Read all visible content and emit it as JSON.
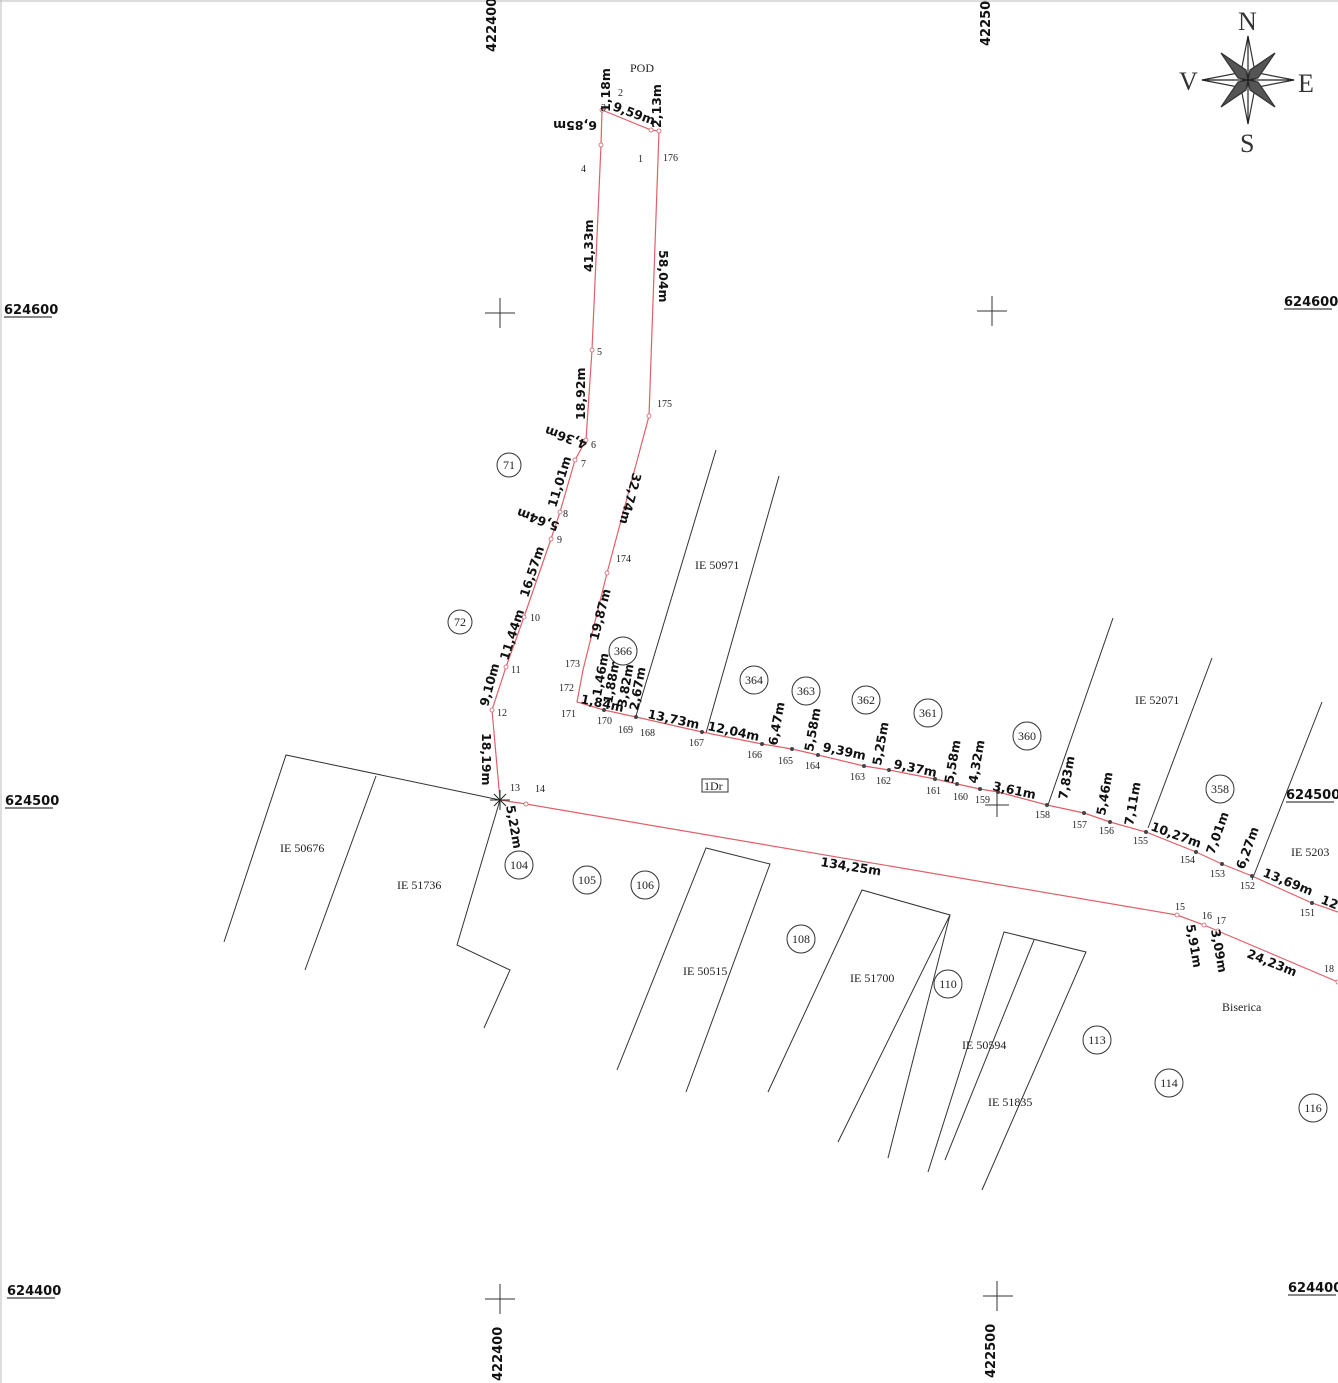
{
  "grid": {
    "y_labels": [
      "624600",
      "624500",
      "624400"
    ],
    "x_labels": [
      "422400",
      "422500"
    ]
  },
  "compass": {
    "n": "N",
    "s": "S",
    "e": "E",
    "v": "V"
  },
  "boundary_dimensions": [
    "1,18m",
    "9,59m",
    "2,13m",
    "6,85m",
    "41,33m",
    "58,04m",
    "18,92m",
    "4,36m",
    "11,01m",
    "5,64m",
    "32,74m",
    "16,57m",
    "19,87m",
    "11,44m",
    "9,10m",
    "18,19m",
    "5,22m",
    "13,73m",
    "12,04m",
    "6,47m",
    "5,58m",
    "9,39m",
    "5,25m",
    "9,37m",
    "5,58m",
    "4,32m",
    "3,61m",
    "7,83m",
    "5,46m",
    "7,11m",
    "10,27m",
    "7,01m",
    "6,27m",
    "13,69m",
    "12",
    "134,25m",
    "5,91m",
    "3,09m",
    "24,23m",
    "2,67m",
    "3,82m",
    "1,84m",
    "1,88m",
    "1,46m"
  ],
  "point_numbers": [
    "2",
    "1",
    "176",
    "4",
    "5",
    "175",
    "6",
    "7",
    "8",
    "9",
    "174",
    "10",
    "11",
    "12",
    "173",
    "172",
    "171",
    "170",
    "169",
    "168",
    "167",
    "166",
    "165",
    "164",
    "163",
    "162",
    "161",
    "160",
    "159",
    "158",
    "157",
    "156",
    "155",
    "154",
    "153",
    "152",
    "151",
    "13",
    "14",
    "15",
    "16",
    "17",
    "18",
    "3"
  ],
  "parcel_circles": [
    "71",
    "72",
    "366",
    "364",
    "363",
    "362",
    "361",
    "360",
    "358",
    "104",
    "105",
    "106",
    "108",
    "110",
    "113",
    "114",
    "116"
  ],
  "parcel_ids": [
    "IE 50971",
    "IE 52071",
    "IE 5203",
    "IE 50676",
    "IE 51736",
    "IE 50515",
    "IE 51700",
    "IE 50594",
    "IE 51835"
  ],
  "place_labels": [
    "POD",
    "Biserica",
    "1Dr"
  ]
}
